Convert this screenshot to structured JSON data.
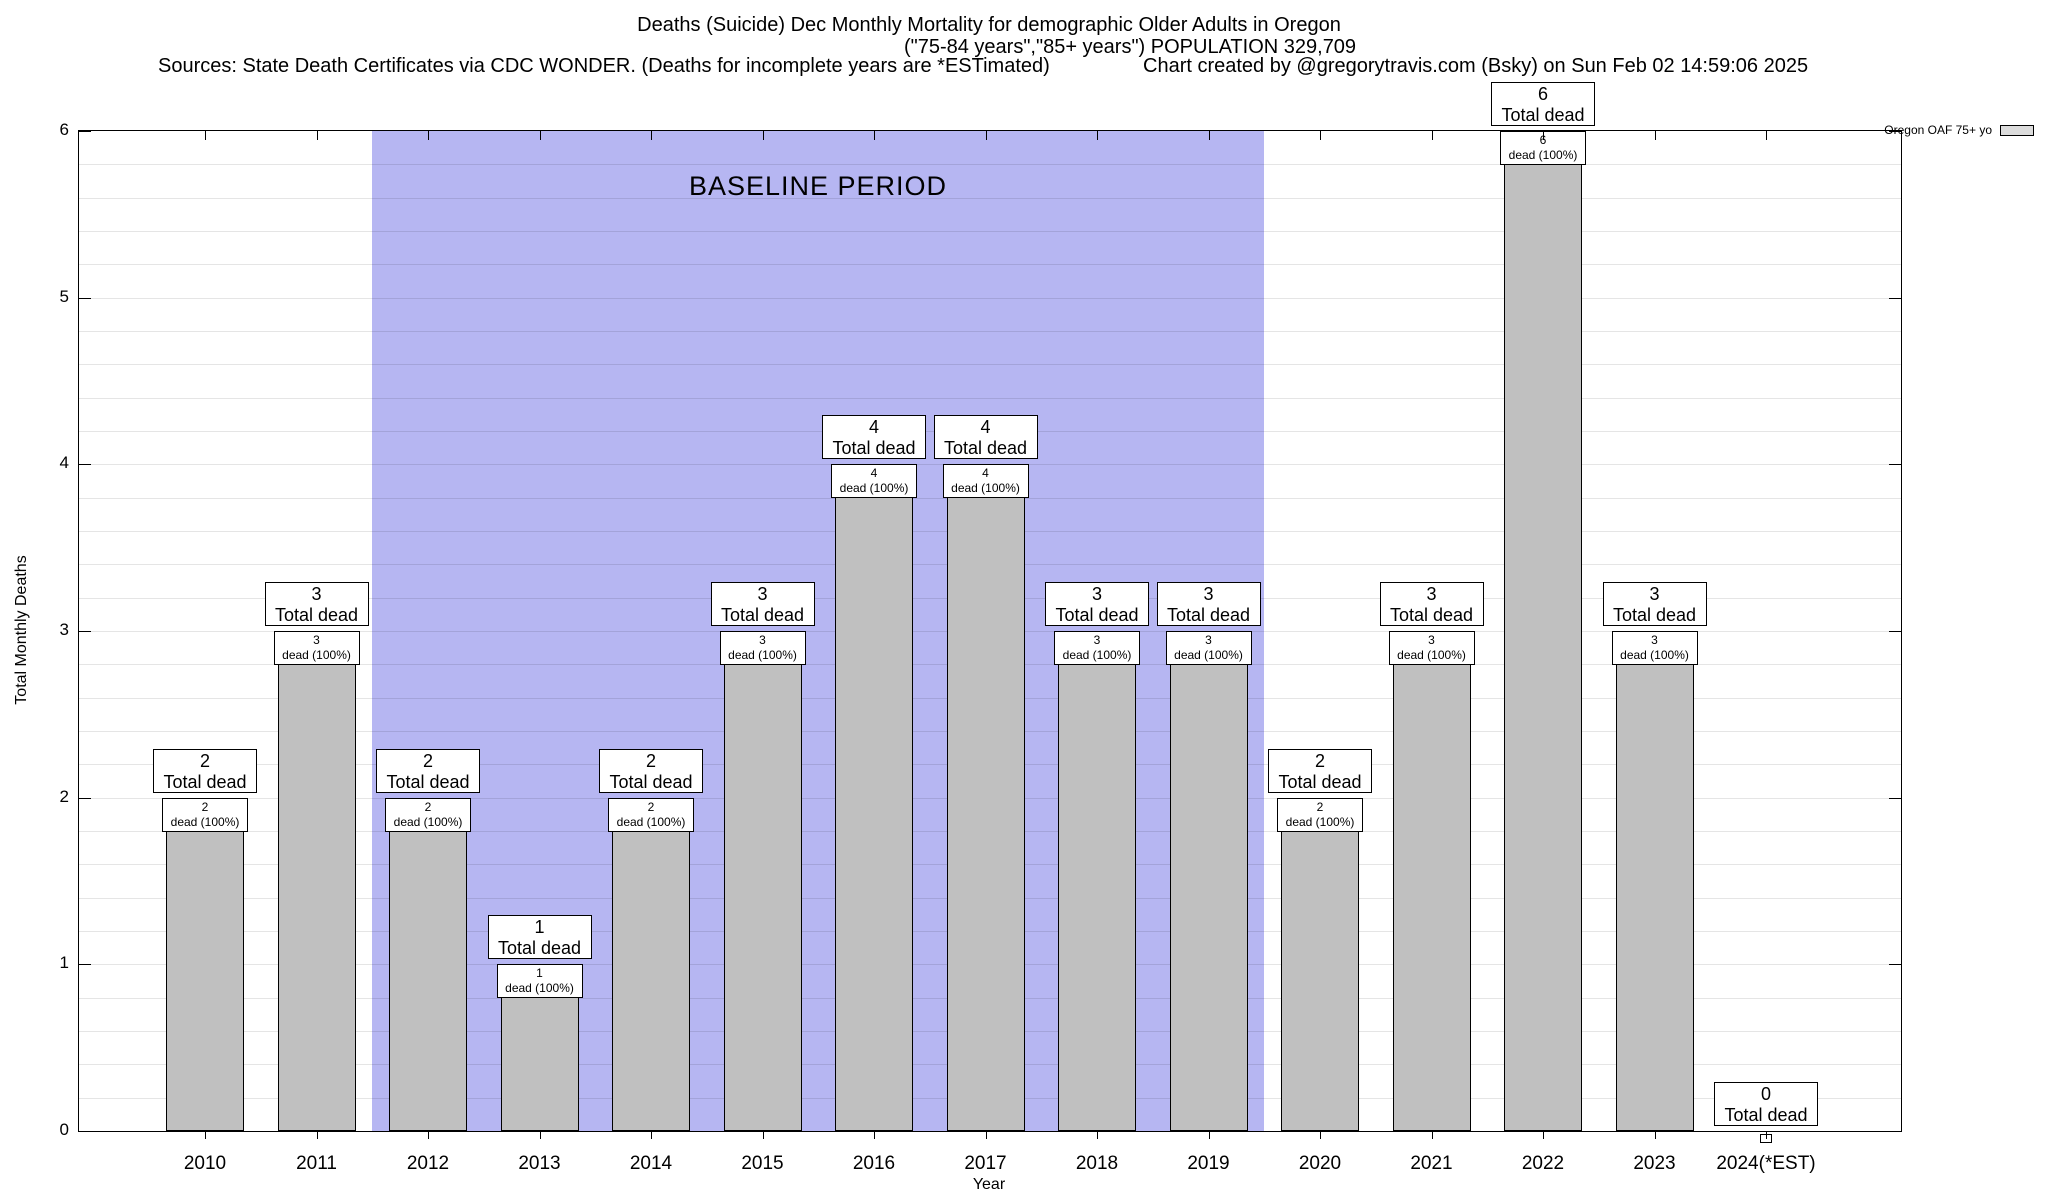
{
  "chart_data": {
    "type": "bar",
    "title": "Deaths (Suicide) Dec Monthly Mortality for demographic Older Adults in Oregon",
    "subtitle": "(\"75-84 years\",\"85+ years\") POPULATION 329,709",
    "sources_note": "Sources: State Death Certificates via CDC WONDER. (Deaths for incomplete years are *ESTimated)",
    "credit_note": "Chart created by @gregorytravis.com (Bsky) on Sun Feb 02 14:59:06 2025",
    "xlabel": "Year",
    "ylabel": "Total Monthly Deaths",
    "ylim": [
      0,
      6
    ],
    "yticks": [
      0,
      1,
      2,
      3,
      4,
      5,
      6
    ],
    "grid": "horizontal minor gridlines every 0.2 units",
    "legend": {
      "label": "Oregon OAF 75+ yo",
      "position": "top-right-outside"
    },
    "categories": [
      "2010",
      "2011",
      "2012",
      "2013",
      "2014",
      "2015",
      "2016",
      "2017",
      "2018",
      "2019",
      "2020",
      "2021",
      "2022",
      "2023",
      "2024(*EST)"
    ],
    "values": [
      2,
      3,
      2,
      1,
      2,
      3,
      4,
      4,
      3,
      3,
      2,
      3,
      6,
      3,
      0
    ],
    "annotation_captions": {
      "total": "Total dead",
      "pct": "dead (100%)"
    },
    "baseline_region": {
      "label": "BASELINE PERIOD",
      "from_index": 1.5,
      "to_index": 9.5
    },
    "colors": {
      "bar_fill": "#c0c0c0",
      "bar_border": "#000000",
      "baseline_fill": "#b6b6f2",
      "annotation_box_fill": "#ffffff",
      "legend_swatch_fill": "#dcdcdc"
    }
  }
}
